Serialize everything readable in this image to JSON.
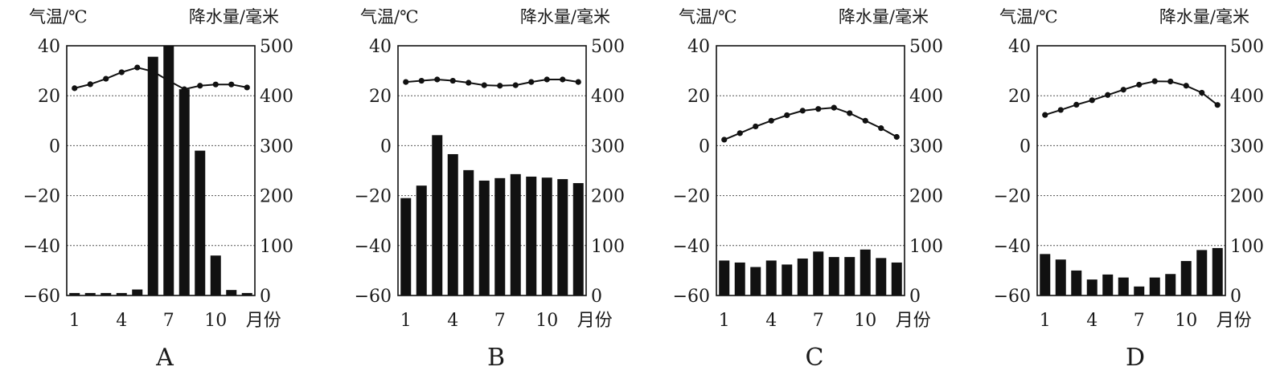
{
  "chart_data": [
    {
      "type": "bar+line",
      "title": "A",
      "left_axis_label": "气温/℃",
      "right_axis_label": "降水量/毫米",
      "x_unit_label": "月份",
      "x": [
        1,
        2,
        3,
        4,
        5,
        6,
        7,
        8,
        9,
        10,
        11,
        12
      ],
      "x_tick_labels": [
        "1",
        "4",
        "7",
        "10"
      ],
      "temp_ylim": [
        -60,
        40
      ],
      "temp_ticks": [
        "40",
        "20",
        "0",
        "-20",
        "-40",
        "-60"
      ],
      "precip_ylim": [
        0,
        500
      ],
      "precip_ticks": [
        "500",
        "400",
        "300",
        "200",
        "100",
        "0"
      ],
      "grid": "dotted horizontal",
      "temperature": [
        23,
        24.6,
        26.8,
        29.4,
        31.3,
        29.7,
        26,
        22.6,
        24,
        24.5,
        24.5,
        23.3
      ],
      "precipitation": [
        5,
        5,
        5,
        5,
        12,
        478,
        505,
        413,
        290,
        80,
        11,
        5
      ]
    },
    {
      "type": "bar+line",
      "title": "B",
      "left_axis_label": "气温/℃",
      "right_axis_label": "降水量/毫米",
      "x_unit_label": "月份",
      "x": [
        1,
        2,
        3,
        4,
        5,
        6,
        7,
        8,
        9,
        10,
        11,
        12
      ],
      "x_tick_labels": [
        "1",
        "4",
        "7",
        "10"
      ],
      "temp_ylim": [
        -60,
        40
      ],
      "temp_ticks": [
        "40",
        "20",
        "0",
        "-20",
        "-40",
        "-60"
      ],
      "precip_ylim": [
        0,
        500
      ],
      "precip_ticks": [
        "500",
        "400",
        "300",
        "200",
        "100",
        "0"
      ],
      "grid": "dotted horizontal",
      "temperature": [
        25.5,
        26,
        26.5,
        26,
        25.2,
        24.2,
        24,
        24.2,
        25.5,
        26.5,
        26.5,
        25.5
      ],
      "precipitation": [
        195,
        220,
        321,
        283,
        251,
        230,
        235,
        243,
        238,
        236,
        233,
        225
      ]
    },
    {
      "type": "bar+line",
      "title": "C",
      "left_axis_label": "气温/℃",
      "right_axis_label": "降水量/毫米",
      "x_unit_label": "月份",
      "x": [
        1,
        2,
        3,
        4,
        5,
        6,
        7,
        8,
        9,
        10,
        11,
        12
      ],
      "x_tick_labels": [
        "1",
        "4",
        "7",
        "10"
      ],
      "temp_ylim": [
        -60,
        40
      ],
      "temp_ticks": [
        "40",
        "20",
        "0",
        "-20",
        "-40",
        "-60"
      ],
      "precip_ylim": [
        0,
        500
      ],
      "precip_ticks": [
        "500",
        "400",
        "300",
        "200",
        "100",
        "0"
      ],
      "grid": "dotted horizontal",
      "temperature": [
        2.4,
        5,
        7.7,
        10,
        12.2,
        14,
        14.7,
        15.2,
        13,
        10,
        7,
        3.5
      ],
      "precipitation": [
        70,
        66,
        57,
        70,
        62,
        74,
        88,
        77,
        77,
        92,
        75,
        66
      ]
    },
    {
      "type": "bar+line",
      "title": "D",
      "left_axis_label": "气温/℃",
      "right_axis_label": "降水量/毫米",
      "x_unit_label": "月份",
      "x": [
        1,
        2,
        3,
        4,
        5,
        6,
        7,
        8,
        9,
        10,
        11,
        12
      ],
      "x_tick_labels": [
        "1",
        "4",
        "7",
        "10"
      ],
      "temp_ylim": [
        -60,
        40
      ],
      "temp_ticks": [
        "40",
        "20",
        "0",
        "-20",
        "-40",
        "-60"
      ],
      "precip_ylim": [
        0,
        500
      ],
      "precip_ticks": [
        "500",
        "400",
        "300",
        "200",
        "100",
        "0"
      ],
      "grid": "dotted horizontal",
      "temperature": [
        12.3,
        14.3,
        16.4,
        18.2,
        20.3,
        22.4,
        24.4,
        25.8,
        25.7,
        24,
        21.2,
        16.3
      ],
      "precipitation": [
        83,
        72,
        50,
        32,
        42,
        36,
        18,
        36,
        43,
        69,
        91,
        95
      ]
    }
  ],
  "colors": {
    "ink": "#111111",
    "grid": "#555555"
  }
}
